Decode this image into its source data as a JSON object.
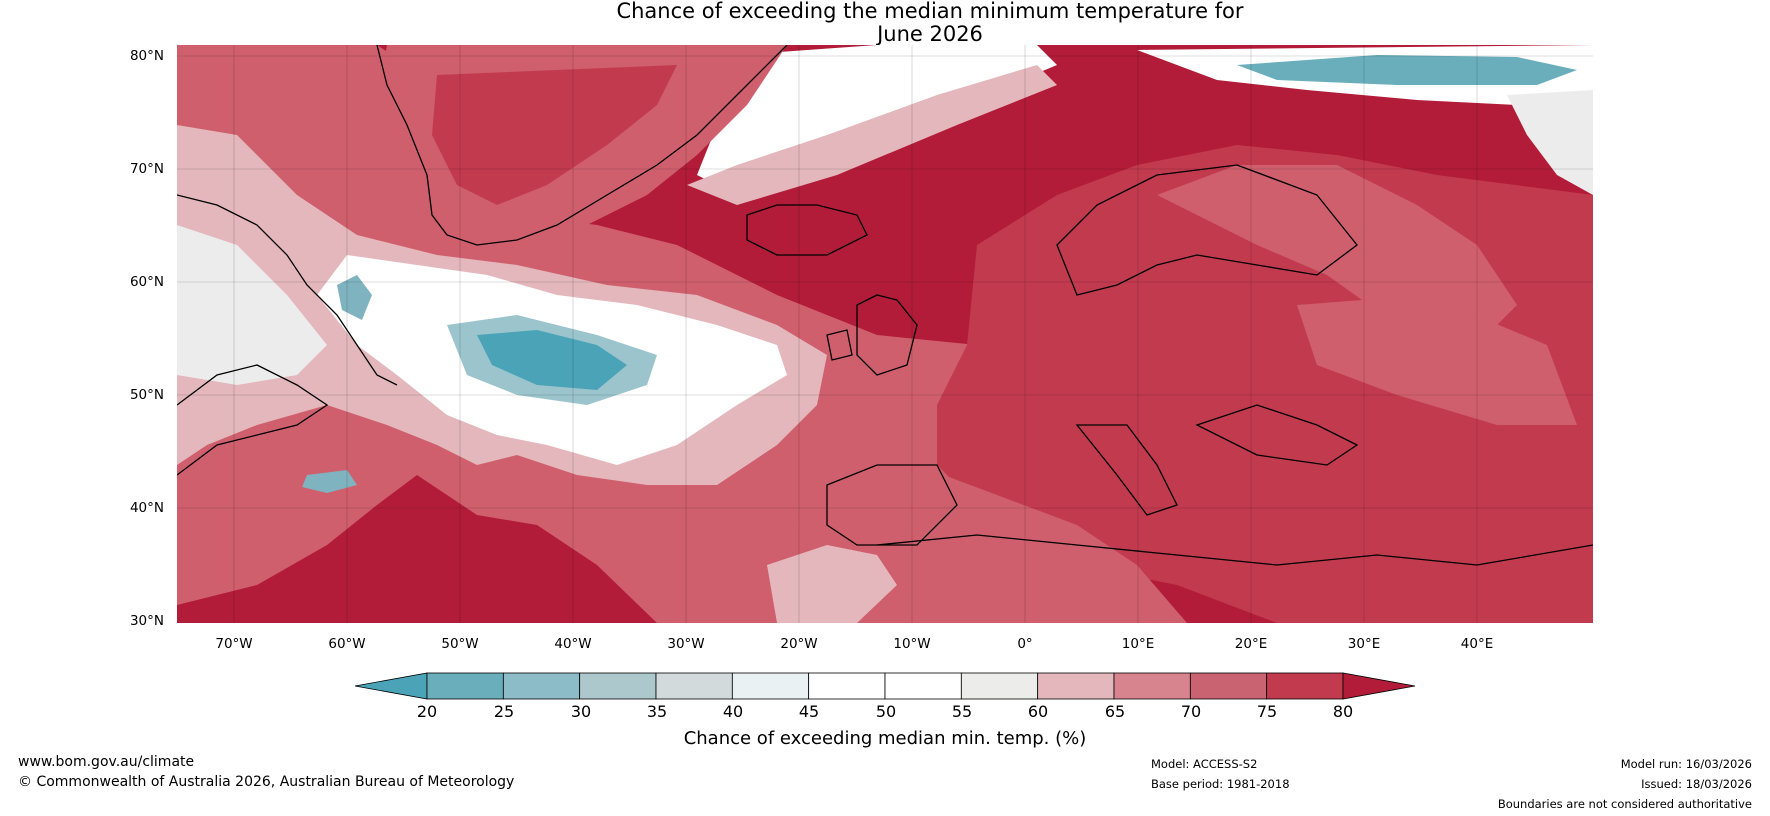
{
  "title": {
    "line1": "Chance of exceeding the median minimum temperature for",
    "line2": "June 2026"
  },
  "map": {
    "latitude_labels": [
      "80°N",
      "70°N",
      "60°N",
      "50°N",
      "40°N",
      "30°N"
    ],
    "longitude_labels": [
      "70°W",
      "60°W",
      "50°W",
      "40°W",
      "30°W",
      "20°W",
      "10°W",
      "0°",
      "10°E",
      "20°E",
      "30°E",
      "40°E"
    ],
    "colors": {
      "ocean_high": "#b21c38",
      "land_high": "#c23a4e",
      "mid_high": "#cf5f6d",
      "moderate": "#e3b7bc",
      "neutral": "#ffffff",
      "light_grey": "#ececec",
      "low": "#4aa3b6"
    }
  },
  "colorbar": {
    "tick_labels": [
      "20",
      "25",
      "30",
      "35",
      "40",
      "45",
      "50",
      "55",
      "60",
      "65",
      "70",
      "75",
      "80"
    ],
    "colors": [
      "#4aa3b6",
      "#6aaebc",
      "#8bbcc7",
      "#adc8cc",
      "#d2dadc",
      "#e9f1f2",
      "#ffffff",
      "#ffffff",
      "#ececea",
      "#e3b7bc",
      "#d7848e",
      "#ca6371",
      "#c23a4e",
      "#b21c38"
    ],
    "label": "Chance of exceeding median min. temp. (%)"
  },
  "footer": {
    "website": "www.bom.gov.au/climate",
    "copyright": "© Commonwealth of Australia 2026, Australian Bureau of Meteorology",
    "model": "Model: ACCESS-S2",
    "base_period": "Base period: 1981-2018",
    "model_run": "Model run: 16/03/2026",
    "issued": "Issued: 18/03/2026",
    "disclaimer": "Boundaries are not considered authoritative"
  }
}
